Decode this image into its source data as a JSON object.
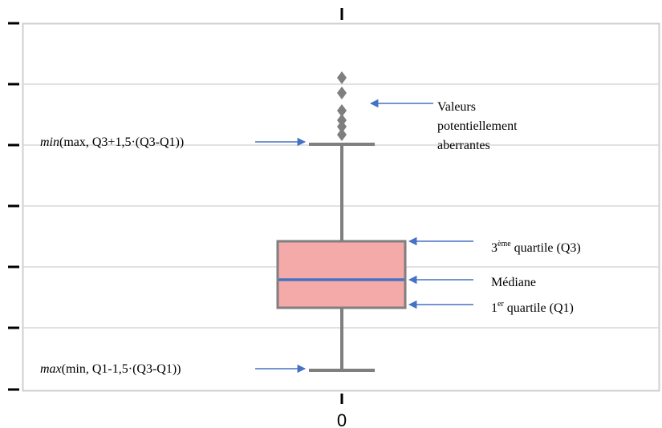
{
  "colors": {
    "frame": "#cfcfcf",
    "grid": "#d9d9d9",
    "axis_ticks": "#000000",
    "whisker": "#7f7f7f",
    "box_fill": "#f4aaa8",
    "box_stroke": "#7f7f7f",
    "median": "#4472c4",
    "arrow": "#4472c4",
    "outlier": "#7f7f7f"
  },
  "axis": {
    "x_tick_label": "0"
  },
  "annotations": {
    "upper_whisker": {
      "italic": "min",
      "rest": "(max, Q3+1,5·(Q3-Q1))"
    },
    "lower_whisker": {
      "italic": "max",
      "rest": "(min, Q1-1,5·(Q3-Q1))"
    },
    "outliers": [
      "Valeurs",
      "potentiellement",
      "aberrantes"
    ],
    "q3": {
      "pre": "3",
      "sup": "ème",
      "post": " quartile (Q3)"
    },
    "median": "Médiane",
    "q1": {
      "pre": "1",
      "sup": "er",
      "post": " quartile (Q1)"
    }
  },
  "chart_data": {
    "type": "box",
    "categories": [
      "0"
    ],
    "grid": true,
    "legend": "none"
  }
}
